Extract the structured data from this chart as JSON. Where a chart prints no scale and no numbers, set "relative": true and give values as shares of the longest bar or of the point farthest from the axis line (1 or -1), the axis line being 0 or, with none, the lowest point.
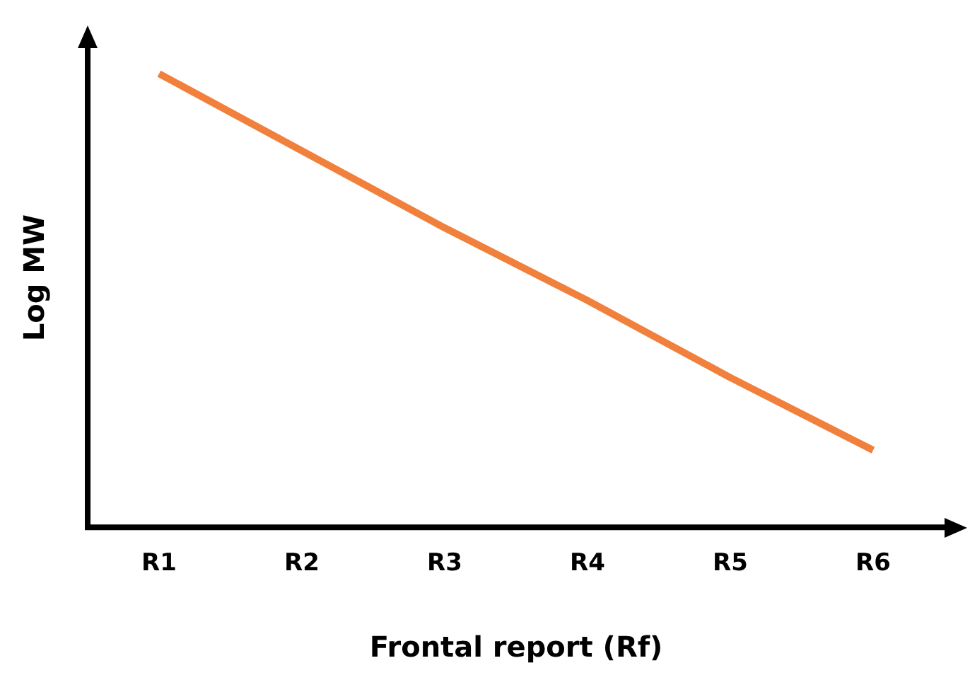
{
  "chart_data": {
    "type": "line",
    "xlabel": "Frontal report (Rf)",
    "ylabel": "Log MW",
    "categories": [
      "R1",
      "R2",
      "R3",
      "R4",
      "R5",
      "R6"
    ],
    "relative": true,
    "marker": "none",
    "grid": false,
    "legend": false,
    "series": [
      {
        "color": "#f0803c",
        "values": [
          1,
          0.83,
          0.66,
          0.5,
          0.33,
          0.17
        ]
      }
    ]
  }
}
